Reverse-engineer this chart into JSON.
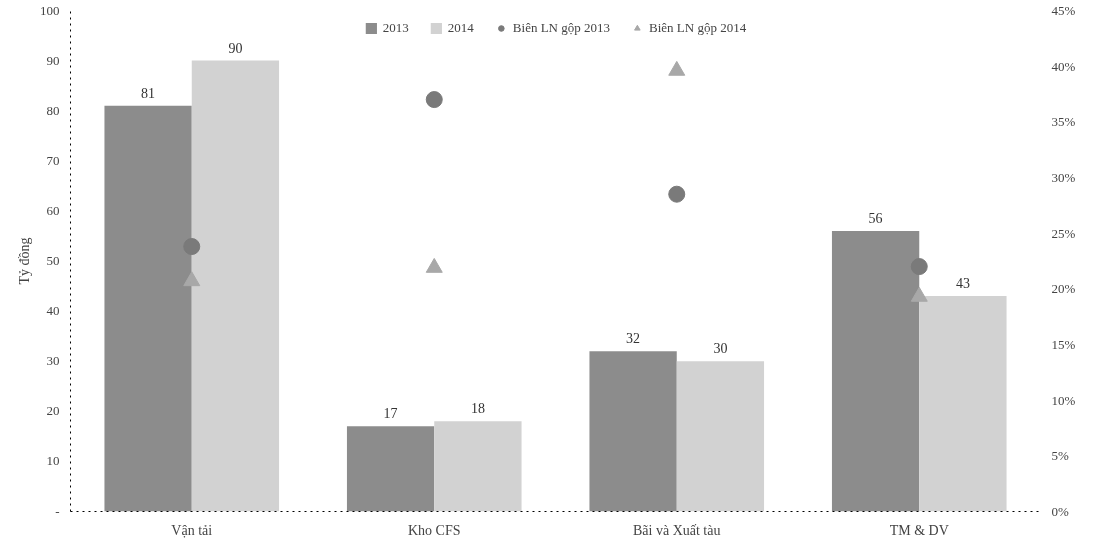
{
  "chart_data": {
    "type": "bar",
    "ylabel": "Tỷ đồng",
    "categories": [
      "Vận tải",
      "Kho CFS",
      "Bãi và Xuất tàu",
      "TM & DV"
    ],
    "series": [
      {
        "name": "2013",
        "color": "#8c8c8c",
        "values": [
          81,
          17,
          32,
          56
        ],
        "value_labels": [
          "81",
          "17",
          "32",
          "56"
        ]
      },
      {
        "name": "2014",
        "color": "#d2d2d2",
        "values": [
          90,
          18,
          30,
          43
        ],
        "value_labels": [
          "90",
          "18",
          "30",
          "43"
        ]
      },
      {
        "name": "Biên LN gộp 2013",
        "type": "scatter",
        "axis": "y2",
        "marker": "circle",
        "color": "#7a7a7a",
        "values": [
          23.8,
          37.0,
          28.5,
          22.0
        ]
      },
      {
        "name": "Biên LN gộp 2014",
        "type": "scatter",
        "axis": "y2",
        "marker": "triangle",
        "color": "#a8a8a8",
        "values": [
          20.7,
          21.9,
          39.6,
          19.3
        ]
      }
    ],
    "ylim": [
      0,
      100
    ],
    "yticks": [
      {
        "value": 0,
        "label": "-"
      },
      10,
      20,
      30,
      40,
      50,
      60,
      70,
      80,
      90,
      100
    ],
    "y2lim": [
      0,
      45
    ],
    "y2ticks": [
      {
        "value": 0,
        "label": "0%"
      },
      {
        "value": 5,
        "label": "5%"
      },
      {
        "value": 10,
        "label": "10%"
      },
      {
        "value": 15,
        "label": "15%"
      },
      {
        "value": 20,
        "label": "20%"
      },
      {
        "value": 25,
        "label": "25%"
      },
      {
        "value": 30,
        "label": "30%"
      },
      {
        "value": 35,
        "label": "35%"
      },
      {
        "value": 40,
        "label": "40%"
      },
      {
        "value": 45,
        "label": "45%"
      }
    ],
    "grid": false,
    "legend": "top"
  }
}
